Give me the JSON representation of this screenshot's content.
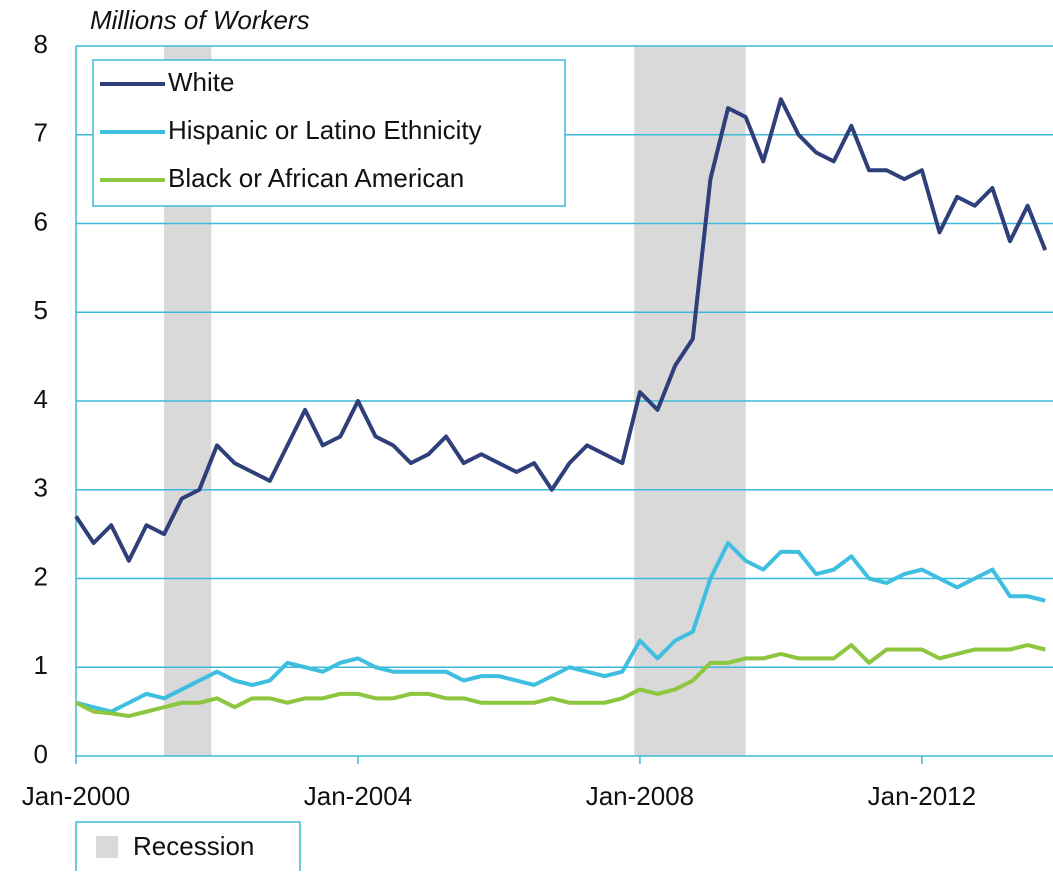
{
  "chart_data": {
    "type": "line",
    "y_axis_label": "Millions of Workers",
    "x": [
      2000,
      2000.25,
      2000.5,
      2000.75,
      2001,
      2001.25,
      2001.5,
      2001.75,
      2002,
      2002.25,
      2002.5,
      2002.75,
      2003,
      2003.25,
      2003.5,
      2003.75,
      2004,
      2004.25,
      2004.5,
      2004.75,
      2005,
      2005.25,
      2005.5,
      2005.75,
      2006,
      2006.25,
      2006.5,
      2006.75,
      2007,
      2007.25,
      2007.5,
      2007.75,
      2008,
      2008.25,
      2008.5,
      2008.75,
      2009,
      2009.25,
      2009.5,
      2009.75,
      2010,
      2010.25,
      2010.5,
      2010.75,
      2011,
      2011.25,
      2011.5,
      2011.75,
      2012,
      2012.25,
      2012.5,
      2012.75,
      2013,
      2013.25,
      2013.5,
      2013.75
    ],
    "series": [
      {
        "name": "White",
        "color": "#2e3f7a",
        "values": [
          2.7,
          2.4,
          2.6,
          2.2,
          2.6,
          2.5,
          2.9,
          3.0,
          3.5,
          3.3,
          3.2,
          3.1,
          3.5,
          3.9,
          3.5,
          3.6,
          4.0,
          3.6,
          3.5,
          3.3,
          3.4,
          3.6,
          3.3,
          3.4,
          3.3,
          3.2,
          3.3,
          3.0,
          3.3,
          3.5,
          3.4,
          3.3,
          4.1,
          3.9,
          4.4,
          4.7,
          6.5,
          7.3,
          7.2,
          6.7,
          7.4,
          7.0,
          6.8,
          6.7,
          7.1,
          6.6,
          6.6,
          6.5,
          6.6,
          5.9,
          6.3,
          6.2,
          6.4,
          5.8,
          6.2,
          5.7
        ]
      },
      {
        "name": "Hispanic or Latino Ethnicity",
        "color": "#3fbfe0",
        "values": [
          0.6,
          0.55,
          0.5,
          0.6,
          0.7,
          0.65,
          0.75,
          0.85,
          0.95,
          0.85,
          0.8,
          0.85,
          1.05,
          1.0,
          0.95,
          1.05,
          1.1,
          1.0,
          0.95,
          0.95,
          0.95,
          0.95,
          0.85,
          0.9,
          0.9,
          0.85,
          0.8,
          0.9,
          1.0,
          0.95,
          0.9,
          0.95,
          1.3,
          1.1,
          1.3,
          1.4,
          2.0,
          2.4,
          2.2,
          2.1,
          2.3,
          2.3,
          2.05,
          2.1,
          2.25,
          2.0,
          1.95,
          2.05,
          2.1,
          2.0,
          1.9,
          2.0,
          2.1,
          1.8,
          1.8,
          1.75
        ]
      },
      {
        "name": "Black or African American",
        "color": "#8dc63f",
        "values": [
          0.6,
          0.5,
          0.48,
          0.45,
          0.5,
          0.55,
          0.6,
          0.6,
          0.65,
          0.55,
          0.65,
          0.65,
          0.6,
          0.65,
          0.65,
          0.7,
          0.7,
          0.65,
          0.65,
          0.7,
          0.7,
          0.65,
          0.65,
          0.6,
          0.6,
          0.6,
          0.6,
          0.65,
          0.6,
          0.6,
          0.6,
          0.65,
          0.75,
          0.7,
          0.75,
          0.85,
          1.05,
          1.05,
          1.1,
          1.1,
          1.15,
          1.1,
          1.1,
          1.1,
          1.25,
          1.05,
          1.2,
          1.2,
          1.2,
          1.1,
          1.15,
          1.2,
          1.2,
          1.2,
          1.25,
          1.2
        ]
      }
    ],
    "recession_label": "Recession",
    "recession_color": "#d9d9d9",
    "recessions": [
      [
        2001.25,
        2001.92
      ],
      [
        2007.92,
        2009.5
      ]
    ],
    "xlim": [
      2000,
      2013.86
    ],
    "xticks": [
      {
        "value": 2000,
        "label": "Jan-2000"
      },
      {
        "value": 2004,
        "label": "Jan-2004"
      },
      {
        "value": 2008,
        "label": "Jan-2008"
      },
      {
        "value": 2012,
        "label": "Jan-2012"
      }
    ],
    "ylim": [
      0,
      8
    ],
    "yticks": [
      0,
      1,
      2,
      3,
      4,
      5,
      6,
      7,
      8
    ],
    "grid": true,
    "legend": "top-left"
  }
}
